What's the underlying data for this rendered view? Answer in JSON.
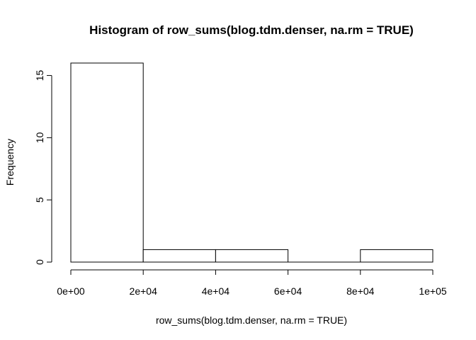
{
  "chart_data": {
    "type": "bar",
    "title": "Histogram of row_sums(blog.tdm.denser, na.rm = TRUE)",
    "xlabel": "row_sums(blog.tdm.denser, na.rm = TRUE)",
    "ylabel": "Frequency",
    "bins": [
      {
        "from": 0,
        "to": 20000,
        "count": 16
      },
      {
        "from": 20000,
        "to": 40000,
        "count": 1
      },
      {
        "from": 40000,
        "to": 60000,
        "count": 1
      },
      {
        "from": 60000,
        "to": 80000,
        "count": 0
      },
      {
        "from": 80000,
        "to": 100000,
        "count": 1
      }
    ],
    "xlim": [
      0,
      100000
    ],
    "ylim": [
      0,
      16
    ],
    "x_ticks": [
      0,
      20000,
      40000,
      60000,
      80000,
      100000
    ],
    "x_tick_labels": [
      "0e+00",
      "2e+04",
      "4e+04",
      "6e+04",
      "8e+04",
      "1e+05"
    ],
    "y_ticks": [
      0,
      5,
      10,
      15
    ],
    "y_tick_labels": [
      "0",
      "5",
      "10",
      "15"
    ],
    "grid": false,
    "bar_fill": "#ffffff",
    "bar_stroke": "#000000"
  }
}
